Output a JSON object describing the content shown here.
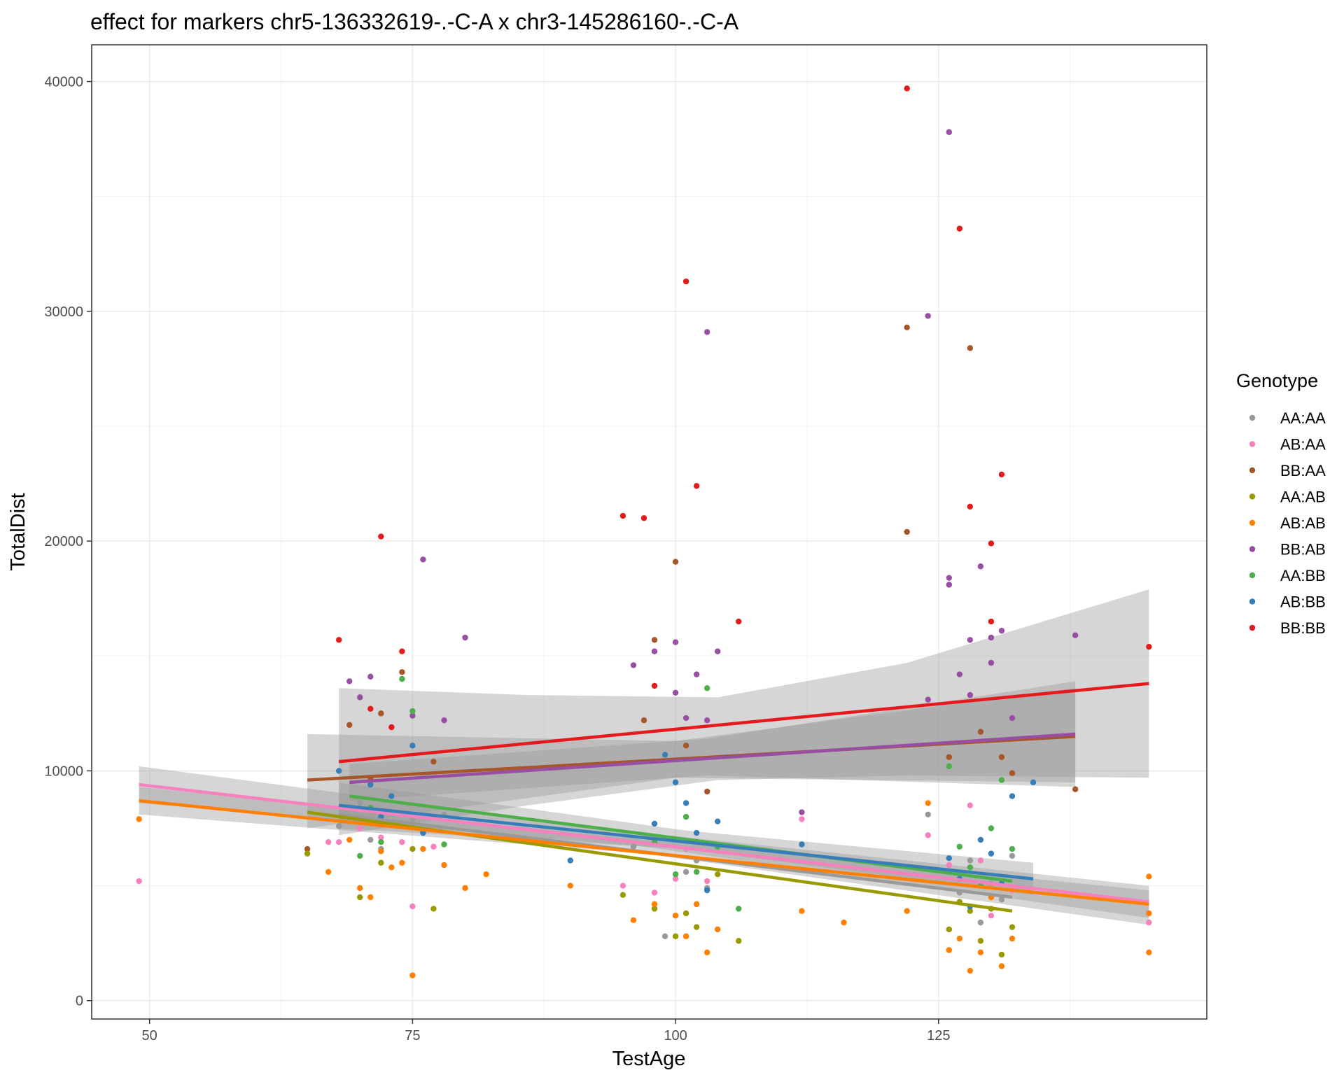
{
  "chart_data": {
    "type": "scatter",
    "title": "effect for markers chr5-136332619-.-C-A x chr3-145286160-.-C-A",
    "xlabel": "TestAge",
    "ylabel": "TotalDist",
    "xlim": [
      44.5,
      150.5
    ],
    "ylim": [
      -800,
      41600
    ],
    "x_ticks": [
      50,
      75,
      100,
      125
    ],
    "y_ticks": [
      0,
      10000,
      20000,
      30000,
      40000
    ],
    "grid": true,
    "legend": {
      "title": "Genotype",
      "position": "right"
    },
    "series": [
      {
        "name": "AA:AA",
        "color": "#999999",
        "points": [
          [
            68,
            7600
          ],
          [
            70,
            8600
          ],
          [
            71,
            7000
          ],
          [
            72,
            6600
          ],
          [
            73,
            8200
          ],
          [
            75,
            7900
          ],
          [
            76,
            7400
          ],
          [
            78,
            8100
          ],
          [
            96,
            6700
          ],
          [
            99,
            2800
          ],
          [
            100,
            7000
          ],
          [
            101,
            5600
          ],
          [
            102,
            6100
          ],
          [
            103,
            4900
          ],
          [
            124,
            8100
          ],
          [
            126,
            5600
          ],
          [
            127,
            4700
          ],
          [
            128,
            6100
          ],
          [
            129,
            3400
          ],
          [
            130,
            5100
          ],
          [
            131,
            4400
          ],
          [
            132,
            6300
          ]
        ],
        "fit": {
          "x": [
            68,
            132
          ],
          "y": [
            8100,
            4500
          ]
        }
      },
      {
        "name": "AB:AA",
        "color": "#F781BF",
        "points": [
          [
            49,
            5200
          ],
          [
            67,
            6900
          ],
          [
            68,
            6900
          ],
          [
            70,
            7500
          ],
          [
            72,
            7100
          ],
          [
            74,
            6900
          ],
          [
            75,
            4100
          ],
          [
            77,
            6700
          ],
          [
            95,
            5000
          ],
          [
            98,
            4700
          ],
          [
            100,
            5300
          ],
          [
            101,
            6600
          ],
          [
            103,
            5200
          ],
          [
            112,
            7900
          ],
          [
            124,
            7200
          ],
          [
            126,
            5900
          ],
          [
            128,
            8500
          ],
          [
            129,
            6100
          ],
          [
            130,
            3700
          ],
          [
            132,
            4800
          ],
          [
            145,
            3400
          ]
        ],
        "fit": {
          "x": [
            49,
            145
          ],
          "y": [
            9400,
            4300
          ]
        },
        "band": {
          "x": [
            49,
            97,
            145
          ],
          "lo": [
            8600,
            6700,
            3600
          ],
          "hi": [
            10200,
            7300,
            5000
          ]
        }
      },
      {
        "name": "BB:AA",
        "color": "#A65628",
        "points": [
          [
            65,
            6600
          ],
          [
            69,
            12000
          ],
          [
            71,
            9700
          ],
          [
            72,
            12500
          ],
          [
            74,
            14300
          ],
          [
            77,
            10400
          ],
          [
            97,
            12200
          ],
          [
            98,
            15700
          ],
          [
            100,
            19100
          ],
          [
            101,
            11100
          ],
          [
            103,
            9100
          ],
          [
            122,
            29300
          ],
          [
            122,
            20400
          ],
          [
            126,
            10600
          ],
          [
            128,
            28400
          ],
          [
            129,
            11700
          ],
          [
            131,
            10600
          ],
          [
            132,
            9900
          ],
          [
            138,
            9200
          ]
        ],
        "fit": {
          "x": [
            65,
            138
          ],
          "y": [
            9600,
            11500
          ]
        },
        "band": {
          "x": [
            65,
            100,
            138
          ],
          "lo": [
            7500,
            9700,
            9500
          ],
          "hi": [
            11600,
            11300,
            13600
          ]
        }
      },
      {
        "name": "AA:AB",
        "color": "#999900",
        "points": [
          [
            65,
            6400
          ],
          [
            70,
            4500
          ],
          [
            72,
            6000
          ],
          [
            75,
            6600
          ],
          [
            77,
            4000
          ],
          [
            95,
            4600
          ],
          [
            98,
            4000
          ],
          [
            100,
            2800
          ],
          [
            101,
            3800
          ],
          [
            102,
            3200
          ],
          [
            104,
            5500
          ],
          [
            106,
            2600
          ],
          [
            126,
            3100
          ],
          [
            127,
            4300
          ],
          [
            128,
            3900
          ],
          [
            129,
            2600
          ],
          [
            130,
            4000
          ],
          [
            131,
            2000
          ],
          [
            132,
            3200
          ]
        ],
        "fit": {
          "x": [
            65,
            132
          ],
          "y": [
            8200,
            3900
          ]
        }
      },
      {
        "name": "AB:AB",
        "color": "#FF7F00",
        "points": [
          [
            49,
            7900
          ],
          [
            67,
            5600
          ],
          [
            69,
            7000
          ],
          [
            70,
            4900
          ],
          [
            71,
            4500
          ],
          [
            72,
            6500
          ],
          [
            73,
            5800
          ],
          [
            74,
            6000
          ],
          [
            75,
            1100
          ],
          [
            76,
            6600
          ],
          [
            78,
            5900
          ],
          [
            80,
            4900
          ],
          [
            82,
            5500
          ],
          [
            90,
            5000
          ],
          [
            96,
            3500
          ],
          [
            98,
            4200
          ],
          [
            100,
            3700
          ],
          [
            101,
            2800
          ],
          [
            102,
            4200
          ],
          [
            103,
            2100
          ],
          [
            104,
            3100
          ],
          [
            112,
            3900
          ],
          [
            116,
            3400
          ],
          [
            122,
            3900
          ],
          [
            124,
            8600
          ],
          [
            126,
            2200
          ],
          [
            127,
            2700
          ],
          [
            128,
            1300
          ],
          [
            129,
            2100
          ],
          [
            130,
            4500
          ],
          [
            131,
            1500
          ],
          [
            132,
            2700
          ],
          [
            145,
            5400
          ],
          [
            145,
            2100
          ],
          [
            145,
            3800
          ]
        ],
        "fit": {
          "x": [
            49,
            145
          ],
          "y": [
            8700,
            4200
          ]
        },
        "band": {
          "x": [
            49,
            97,
            145
          ],
          "lo": [
            8100,
            6400,
            3300
          ],
          "hi": [
            9300,
            7000,
            4800
          ]
        }
      },
      {
        "name": "BB:AB",
        "color": "#984EA3",
        "points": [
          [
            69,
            13900
          ],
          [
            70,
            13200
          ],
          [
            71,
            14100
          ],
          [
            73,
            11900
          ],
          [
            75,
            12400
          ],
          [
            76,
            19200
          ],
          [
            78,
            12200
          ],
          [
            80,
            15800
          ],
          [
            96,
            14600
          ],
          [
            98,
            15200
          ],
          [
            100,
            15600
          ],
          [
            100,
            13400
          ],
          [
            101,
            12300
          ],
          [
            102,
            14200
          ],
          [
            103,
            12200
          ],
          [
            104,
            15200
          ],
          [
            103,
            29100
          ],
          [
            112,
            8200
          ],
          [
            124,
            29800
          ],
          [
            124,
            13100
          ],
          [
            126,
            37800
          ],
          [
            126,
            18400
          ],
          [
            126,
            18100
          ],
          [
            127,
            14200
          ],
          [
            128,
            13300
          ],
          [
            128,
            15700
          ],
          [
            129,
            18900
          ],
          [
            130,
            14700
          ],
          [
            130,
            15800
          ],
          [
            131,
            16100
          ],
          [
            132,
            12300
          ],
          [
            138,
            15900
          ]
        ],
        "fit": {
          "x": [
            69,
            138
          ],
          "y": [
            9500,
            11600
          ]
        },
        "band": {
          "x": [
            69,
            103,
            138
          ],
          "lo": [
            8700,
            9800,
            9300
          ],
          "hi": [
            10300,
            11400,
            13900
          ]
        }
      },
      {
        "name": "AA:BB",
        "color": "#4DAF4A",
        "points": [
          [
            70,
            6300
          ],
          [
            71,
            8400
          ],
          [
            72,
            6900
          ],
          [
            74,
            14000
          ],
          [
            75,
            12600
          ],
          [
            76,
            7300
          ],
          [
            78,
            6800
          ],
          [
            98,
            6900
          ],
          [
            100,
            5500
          ],
          [
            101,
            8000
          ],
          [
            102,
            5600
          ],
          [
            103,
            13600
          ],
          [
            104,
            6700
          ],
          [
            106,
            4000
          ],
          [
            126,
            10200
          ],
          [
            127,
            6700
          ],
          [
            128,
            5800
          ],
          [
            129,
            5000
          ],
          [
            130,
            7500
          ],
          [
            131,
            9600
          ],
          [
            132,
            6600
          ]
        ],
        "fit": {
          "x": [
            69,
            132
          ],
          "y": [
            8900,
            5200
          ]
        }
      },
      {
        "name": "AB:BB",
        "color": "#377EB8",
        "points": [
          [
            68,
            10000
          ],
          [
            69,
            8400
          ],
          [
            71,
            9400
          ],
          [
            72,
            8000
          ],
          [
            73,
            8900
          ],
          [
            75,
            11100
          ],
          [
            76,
            7300
          ],
          [
            90,
            6100
          ],
          [
            98,
            7700
          ],
          [
            99,
            10700
          ],
          [
            100,
            9500
          ],
          [
            101,
            8600
          ],
          [
            102,
            7300
          ],
          [
            103,
            4800
          ],
          [
            104,
            7800
          ],
          [
            112,
            6800
          ],
          [
            126,
            6200
          ],
          [
            127,
            5300
          ],
          [
            128,
            4100
          ],
          [
            129,
            7000
          ],
          [
            130,
            6400
          ],
          [
            131,
            5100
          ],
          [
            132,
            8900
          ],
          [
            134,
            9500
          ]
        ],
        "fit": {
          "x": [
            68,
            134
          ],
          "y": [
            8500,
            5300
          ]
        },
        "band": {
          "x": [
            68,
            101,
            134
          ],
          "lo": [
            7500,
            6600,
            4600
          ],
          "hi": [
            9500,
            7400,
            6000
          ]
        }
      },
      {
        "name": "BB:BB",
        "color": "#E41A1C",
        "points": [
          [
            68,
            15700
          ],
          [
            71,
            12700
          ],
          [
            72,
            20200
          ],
          [
            73,
            11900
          ],
          [
            74,
            15200
          ],
          [
            95,
            21100
          ],
          [
            97,
            21000
          ],
          [
            98,
            13700
          ],
          [
            101,
            31300
          ],
          [
            102,
            22400
          ],
          [
            106,
            16500
          ],
          [
            122,
            39700
          ],
          [
            127,
            33600
          ],
          [
            128,
            21500
          ],
          [
            130,
            19900
          ],
          [
            130,
            16500
          ],
          [
            131,
            22900
          ],
          [
            145,
            15400
          ]
        ],
        "fit": {
          "x": [
            68,
            145
          ],
          "y": [
            10400,
            13800
          ]
        },
        "band": {
          "x": [
            68,
            86,
            104,
            122,
            145
          ],
          "lo": [
            7200,
            8500,
            9600,
            9800,
            9700
          ],
          "hi": [
            13600,
            13300,
            13200,
            14700,
            17900
          ]
        }
      }
    ]
  }
}
